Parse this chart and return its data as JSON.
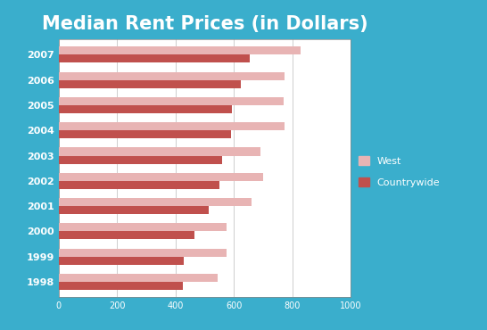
{
  "title": "Median Rent Prices (in Dollars)",
  "years": [
    "2007",
    "2006",
    "2005",
    "2004",
    "2003",
    "2002",
    "2001",
    "2000",
    "1999",
    "1998"
  ],
  "west": [
    830,
    775,
    770,
    775,
    690,
    700,
    660,
    575,
    575,
    545
  ],
  "countrywide": [
    655,
    625,
    595,
    590,
    560,
    550,
    515,
    465,
    430,
    425
  ],
  "west_color": "#e8b4b4",
  "countrywide_color": "#c0504d",
  "background_color": "#3aaecc",
  "plot_bg_color": "#ffffff",
  "xlim": [
    0,
    1000
  ],
  "xticks": [
    0,
    200,
    400,
    600,
    800,
    1000
  ],
  "title_color": "white",
  "title_fontsize": 15,
  "legend_labels": [
    "West",
    "Countrywide"
  ],
  "bar_height": 0.32
}
